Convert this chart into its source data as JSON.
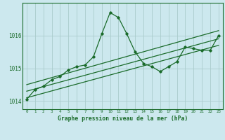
{
  "title": "Graphe pression niveau de la mer (hPa)",
  "bg_color": "#cce8ee",
  "grid_color": "#aacccc",
  "line_color": "#1a6b2a",
  "xlim": [
    -0.5,
    23.5
  ],
  "ylim": [
    1013.75,
    1017.0
  ],
  "yticks": [
    1014,
    1015,
    1016
  ],
  "xticks": [
    0,
    1,
    2,
    3,
    4,
    5,
    6,
    7,
    8,
    9,
    10,
    11,
    12,
    13,
    14,
    15,
    16,
    17,
    18,
    19,
    20,
    21,
    22,
    23
  ],
  "main_x": [
    0,
    1,
    2,
    3,
    4,
    5,
    6,
    7,
    8,
    9,
    10,
    11,
    12,
    13,
    14,
    15,
    16,
    17,
    18,
    19,
    20,
    21,
    22,
    23
  ],
  "main_y": [
    1014.05,
    1014.35,
    1014.45,
    1014.65,
    1014.75,
    1014.95,
    1015.05,
    1015.1,
    1015.35,
    1016.05,
    1016.7,
    1016.55,
    1016.05,
    1015.5,
    1015.15,
    1015.05,
    1014.9,
    1015.05,
    1015.2,
    1015.65,
    1015.6,
    1015.55,
    1015.55,
    1016.0
  ],
  "trend1_x": [
    0,
    23
  ],
  "trend1_y": [
    1014.3,
    1015.9
  ],
  "trend2_x": [
    0,
    23
  ],
  "trend2_y": [
    1014.5,
    1016.15
  ],
  "trend3_x": [
    0,
    23
  ],
  "trend3_y": [
    1014.1,
    1015.7
  ]
}
